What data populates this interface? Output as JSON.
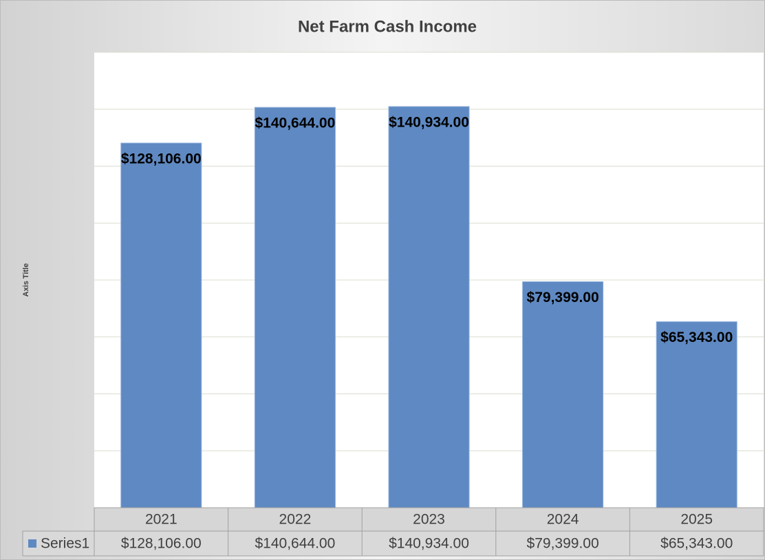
{
  "chart_data": {
    "type": "bar",
    "title": "Net Farm Cash Income",
    "y_axis_label": "Axis Title",
    "categories": [
      "2021",
      "2022",
      "2023",
      "2024",
      "2025"
    ],
    "series": [
      {
        "name": "Series1",
        "color": "#5f89c2",
        "values": [
          128106,
          140644,
          140934,
          79399,
          65343
        ],
        "value_labels": [
          "$128,106.00",
          "$140,644.00",
          "$140,934.00",
          "$79,399.00",
          "$65,343.00"
        ]
      }
    ],
    "ylim": [
      0,
      160000
    ],
    "yticks": [
      0,
      20000,
      40000,
      60000,
      80000,
      100000,
      120000,
      140000,
      160000
    ],
    "grid": true,
    "data_table": true
  }
}
